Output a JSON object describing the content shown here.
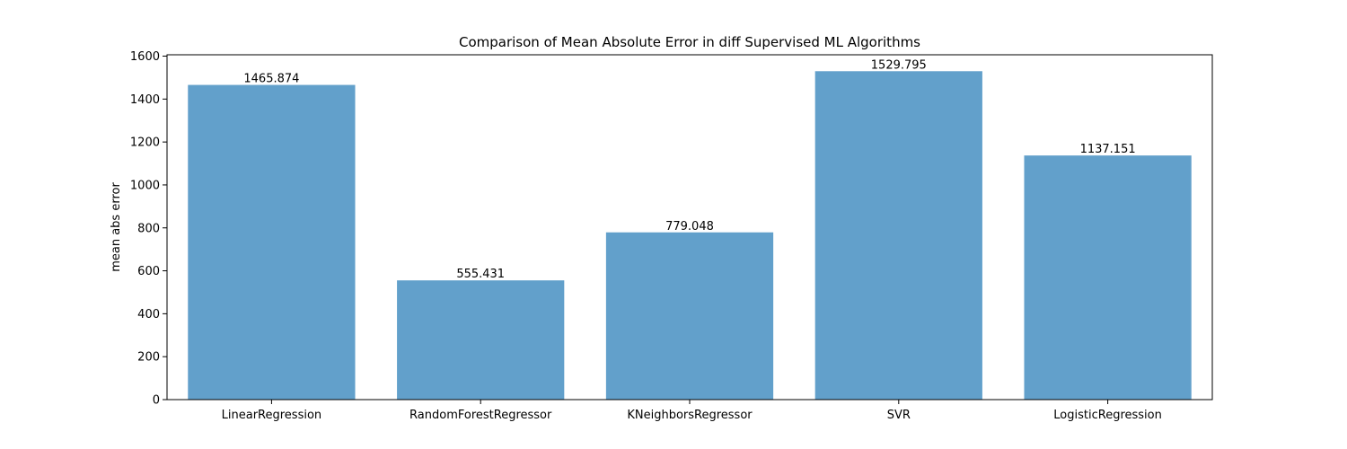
{
  "chart_data": {
    "type": "bar",
    "title": "Comparison of Mean Absolute Error in diff Supervised ML Algorithms",
    "xlabel": "",
    "ylabel": "mean abs error",
    "categories": [
      "LinearRegression",
      "RandomForestRegressor",
      "KNeighborsRegressor",
      "SVR",
      "LogisticRegression"
    ],
    "values": [
      1465.874,
      555.431,
      779.048,
      1529.795,
      1137.151
    ],
    "data_labels": [
      "1465.874",
      "555.431",
      "779.048",
      "1529.795",
      "1137.151"
    ],
    "ylim": [
      0,
      1606.28
    ],
    "yticks": [
      0,
      200,
      400,
      600,
      800,
      1000,
      1200,
      1400,
      1600
    ],
    "grid": false,
    "bar_color": "#62a0cb"
  }
}
